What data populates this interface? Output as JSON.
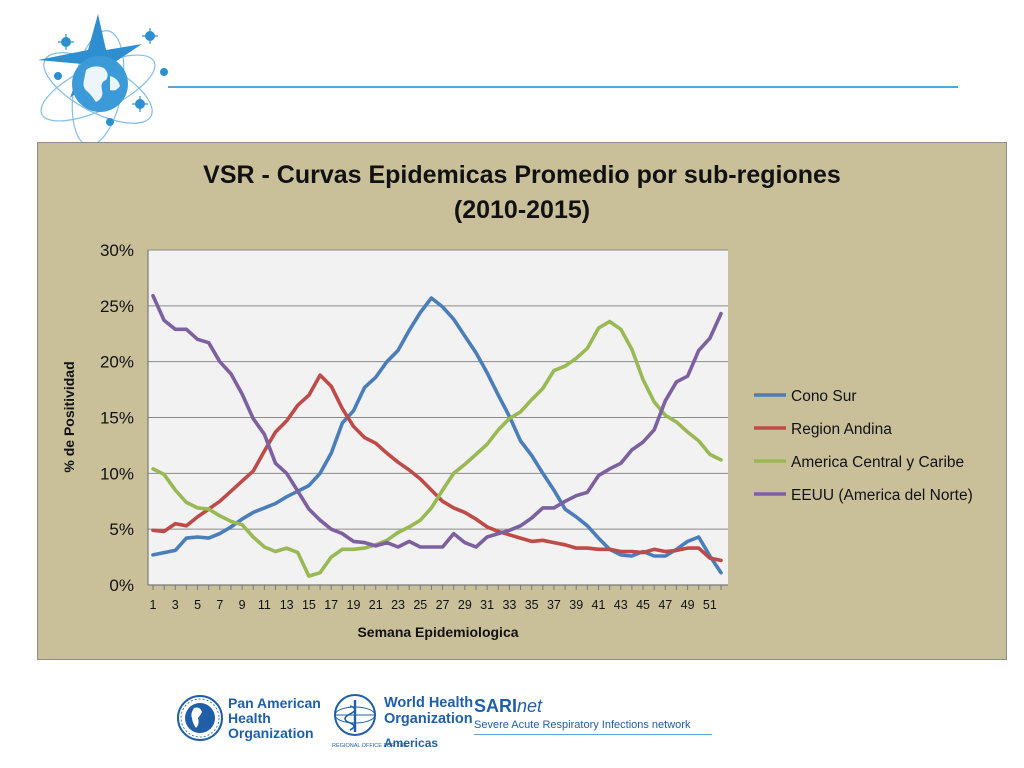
{
  "colors": {
    "panel_bg": "#c9c09a",
    "plot_bg": "#f2f2f2",
    "header_line": "#5aa7d6",
    "brand_blue": "#1f5fa8"
  },
  "chart_data": {
    "type": "line",
    "title": "VSR - Curvas Epidemicas Promedio por sub-regiones",
    "subtitle": "(2010-2015)",
    "xlabel": "Semana Epidemiologica",
    "ylabel": "% de Positividad",
    "ylim": [
      0,
      30
    ],
    "yticks": [
      "0%",
      "5%",
      "10%",
      "15%",
      "20%",
      "25%",
      "30%"
    ],
    "x": [
      1,
      2,
      3,
      4,
      5,
      6,
      7,
      8,
      9,
      10,
      11,
      12,
      13,
      14,
      15,
      16,
      17,
      18,
      19,
      20,
      21,
      22,
      23,
      24,
      25,
      26,
      27,
      28,
      29,
      30,
      31,
      32,
      33,
      34,
      35,
      36,
      37,
      38,
      39,
      40,
      41,
      42,
      43,
      44,
      45,
      46,
      47,
      48,
      49,
      50,
      51,
      52
    ],
    "xtick_labels": [
      "1",
      "3",
      "5",
      "7",
      "9",
      "11",
      "13",
      "15",
      "17",
      "19",
      "21",
      "23",
      "25",
      "27",
      "29",
      "31",
      "33",
      "35",
      "37",
      "39",
      "41",
      "43",
      "45",
      "47",
      "49",
      "51"
    ],
    "grid": "horizontal",
    "legend_position": "right",
    "series": [
      {
        "name": "Cono Sur",
        "color": "#4a7ebb",
        "values": [
          2.7,
          2.9,
          3.1,
          4.2,
          4.3,
          4.2,
          4.6,
          5.2,
          5.9,
          6.5,
          6.9,
          7.3,
          7.9,
          8.4,
          8.9,
          10.0,
          11.8,
          14.5,
          15.6,
          17.7,
          18.6,
          20.0,
          21.0,
          22.8,
          24.4,
          25.7,
          24.9,
          23.8,
          22.3,
          20.8,
          19.0,
          17.0,
          15.1,
          12.9,
          11.6,
          10.0,
          8.5,
          6.8,
          6.1,
          5.3,
          4.2,
          3.2,
          2.7,
          2.6,
          3.0,
          2.6,
          2.6,
          3.2,
          3.9,
          4.3,
          2.6,
          1.1
        ]
      },
      {
        "name": "Region Andina",
        "color": "#be4b48",
        "values": [
          4.9,
          4.8,
          5.5,
          5.3,
          6.1,
          6.8,
          7.5,
          8.4,
          9.3,
          10.2,
          12.0,
          13.7,
          14.7,
          16.1,
          17.0,
          18.8,
          17.8,
          15.8,
          14.2,
          13.2,
          12.7,
          11.8,
          11.0,
          10.3,
          9.5,
          8.5,
          7.5,
          6.9,
          6.5,
          5.9,
          5.2,
          4.8,
          4.5,
          4.2,
          3.9,
          4.0,
          3.8,
          3.6,
          3.3,
          3.3,
          3.2,
          3.2,
          3.0,
          3.0,
          2.9,
          3.2,
          3.0,
          3.1,
          3.3,
          3.3,
          2.4,
          2.2
        ]
      },
      {
        "name": "America Central y Caribe",
        "color": "#98b954",
        "values": [
          10.4,
          9.9,
          8.5,
          7.4,
          6.9,
          6.8,
          6.2,
          5.7,
          5.4,
          4.3,
          3.4,
          3.0,
          3.3,
          2.9,
          0.8,
          1.1,
          2.5,
          3.2,
          3.2,
          3.3,
          3.6,
          4.0,
          4.7,
          5.2,
          5.8,
          6.9,
          8.5,
          10.0,
          10.8,
          11.7,
          12.6,
          13.9,
          14.9,
          15.5,
          16.6,
          17.6,
          19.2,
          19.6,
          20.3,
          21.2,
          23.0,
          23.6,
          22.9,
          21.1,
          18.4,
          16.4,
          15.2,
          14.6,
          13.7,
          12.9,
          11.7,
          11.2
        ]
      },
      {
        "name": "EEUU (America del Norte)",
        "color": "#7d60a0",
        "values": [
          25.9,
          23.7,
          22.9,
          22.9,
          22.0,
          21.7,
          20.0,
          18.9,
          17.1,
          14.9,
          13.5,
          10.9,
          10.0,
          8.4,
          6.8,
          5.8,
          5.0,
          4.6,
          3.9,
          3.8,
          3.5,
          3.8,
          3.4,
          3.9,
          3.4,
          3.4,
          3.4,
          4.6,
          3.8,
          3.4,
          4.3,
          4.6,
          4.9,
          5.3,
          6.0,
          6.9,
          6.9,
          7.5,
          8.0,
          8.3,
          9.8,
          10.4,
          10.9,
          12.1,
          12.8,
          13.9,
          16.5,
          18.2,
          18.7,
          21.0,
          22.1,
          24.3
        ]
      }
    ]
  },
  "footer": {
    "paho_name": [
      "Pan American",
      "Health",
      "Organization"
    ],
    "who_name": [
      "World Health",
      "Organization"
    ],
    "who_regional_small": "REGIONAL OFFICE FOR THE",
    "who_regional_big": "Americas",
    "sari_bold": "SARI",
    "sari_italic": "net",
    "sari_tagline": "Severe Acute Respiratory Infections network"
  }
}
